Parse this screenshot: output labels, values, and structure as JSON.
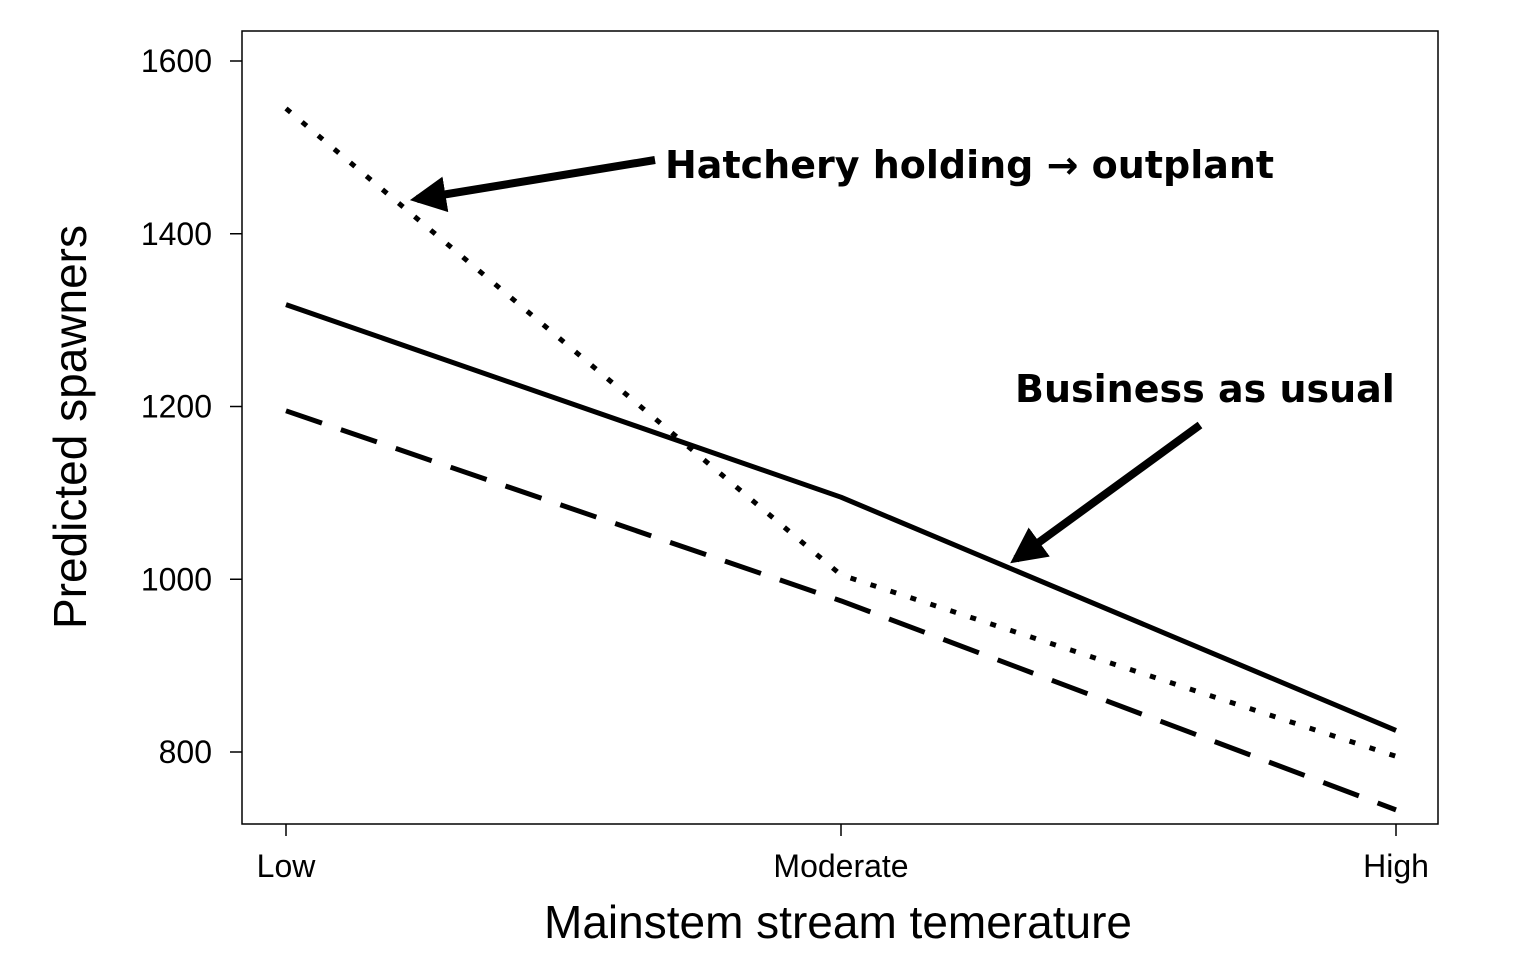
{
  "chart_data": {
    "type": "line",
    "title": "",
    "xlabel": "Mainstem stream temerature",
    "ylabel": "Predicted spawners",
    "categories": [
      "Low",
      "Moderate",
      "High"
    ],
    "yticks": [
      800,
      1000,
      1200,
      1400,
      1600
    ],
    "ylim": [
      710,
      1635
    ],
    "grid": false,
    "series": [
      {
        "style": "dotted",
        "values": [
          1545,
          1005,
          795
        ]
      },
      {
        "style": "solid",
        "values": [
          1318,
          1095,
          825
        ]
      },
      {
        "style": "dashed",
        "values": [
          1195,
          975,
          733
        ]
      }
    ],
    "annotations": [
      {
        "text": "Hatchery holding → outplant",
        "target_series": 0
      },
      {
        "text": "Business as usual",
        "target_series": 1
      }
    ]
  }
}
